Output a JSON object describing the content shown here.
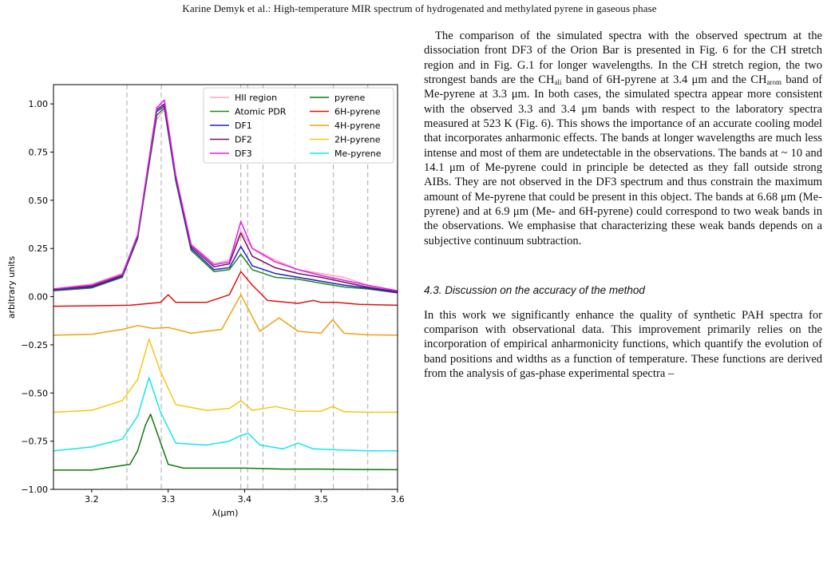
{
  "running_head": "Karine Demyk et al.: High-temperature MIR spectrum of hydrogenated and methylated pyrene in gaseous phase",
  "paragraph1": {
    "t1": "The comparison of the simulated spectra with the observed spectrum at the dissociation front DF3 of the Orion Bar is presented in Fig. 6 for the CH stretch region and in Fig. G.1 for longer wavelengths. In the CH stretch region, the two strongest bands are the CH",
    "sub1": "ali",
    "t2": " band of 6H-pyrene at 3.4 μm and the CH",
    "sub2": "arom",
    "t3": " band of Me-pyrene at 3.3 μm. In both cases, the simulated spectra appear more consistent with the observed 3.3 and 3.4 μm bands with respect to the laboratory spectra measured at 523 K (Fig. 6). This shows the importance of an accurate cooling model that incorporates anharmonic effects. The bands at longer wavelengths are much less intense and most of them are undetectable in the observations. The bands at ~ 10 and 14.1 μm of Me-pyrene could in principle be detected as they fall outside strong AIBs. They are not observed in the DF3 spectrum and thus constrain the maximum amount of Me-pyrene that could be present in this object. The bands at 6.68 μm (Me-pyrene) and at 6.9 μm (Me- and 6H-pyrene) could correspond to two weak bands in the observations. We emphasise that characterizing these weak bands depends on a subjective continuum subtraction."
  },
  "section_heading": "4.3. Discussion on the accuracy of the method",
  "paragraph2": "In this work we significantly enhance the quality of synthetic PAH spectra for comparison with observational data. This improvement primarily relies on the incorporation of empirical anharmonicity functions, which quantify the evolution of band positions and widths as a function of temperature. These functions are derived from the analysis of gas-phase experimental spectra –",
  "chart_data": {
    "type": "line",
    "xlabel": "λ(μm)",
    "ylabel": "arbitrary units",
    "xlim": [
      3.15,
      3.6
    ],
    "ylim": [
      -1.0,
      1.1
    ],
    "xticks": [
      3.2,
      3.3,
      3.4,
      3.5,
      3.6
    ],
    "yticks": [
      1.0,
      0.75,
      0.5,
      0.25,
      0.0,
      -0.25,
      -0.5,
      -0.75,
      -1.0
    ],
    "vlines": [
      3.246,
      3.291,
      3.395,
      3.404,
      3.424,
      3.466,
      3.516,
      3.561
    ],
    "legend_position": "top-right",
    "series": [
      {
        "name": "HII region",
        "color": "#f4a7b9",
        "x": [
          3.15,
          3.2,
          3.24,
          3.26,
          3.285,
          3.295,
          3.31,
          3.33,
          3.36,
          3.38,
          3.395,
          3.41,
          3.44,
          3.47,
          3.5,
          3.53,
          3.56,
          3.6
        ],
        "y": [
          0.04,
          0.065,
          0.12,
          0.32,
          0.92,
          0.97,
          0.62,
          0.27,
          0.17,
          0.19,
          0.34,
          0.25,
          0.19,
          0.14,
          0.12,
          0.1,
          0.06,
          0.03
        ]
      },
      {
        "name": "Atomic PDR",
        "color": "#1a8a1a",
        "x": [
          3.15,
          3.2,
          3.24,
          3.26,
          3.285,
          3.295,
          3.31,
          3.33,
          3.36,
          3.38,
          3.395,
          3.41,
          3.44,
          3.47,
          3.5,
          3.53,
          3.56,
          3.6
        ],
        "y": [
          0.03,
          0.045,
          0.1,
          0.3,
          0.94,
          0.98,
          0.6,
          0.24,
          0.13,
          0.14,
          0.22,
          0.14,
          0.1,
          0.09,
          0.07,
          0.05,
          0.04,
          0.02
        ]
      },
      {
        "name": "DF1",
        "color": "#1f1fd6",
        "x": [
          3.15,
          3.2,
          3.24,
          3.26,
          3.285,
          3.295,
          3.31,
          3.33,
          3.36,
          3.38,
          3.395,
          3.41,
          3.44,
          3.47,
          3.5,
          3.53,
          3.56,
          3.6
        ],
        "y": [
          0.035,
          0.05,
          0.105,
          0.31,
          0.96,
          0.99,
          0.61,
          0.25,
          0.14,
          0.15,
          0.26,
          0.16,
          0.12,
          0.1,
          0.08,
          0.06,
          0.045,
          0.02
        ]
      },
      {
        "name": "DF2",
        "color": "#7b1060",
        "x": [
          3.15,
          3.2,
          3.24,
          3.26,
          3.285,
          3.295,
          3.31,
          3.33,
          3.36,
          3.38,
          3.395,
          3.41,
          3.44,
          3.47,
          3.5,
          3.53,
          3.56,
          3.6
        ],
        "y": [
          0.038,
          0.055,
          0.11,
          0.315,
          0.97,
          1.0,
          0.62,
          0.26,
          0.155,
          0.17,
          0.33,
          0.21,
          0.15,
          0.12,
          0.1,
          0.075,
          0.05,
          0.025
        ]
      },
      {
        "name": "DF3",
        "color": "#e81ce8",
        "x": [
          3.15,
          3.2,
          3.24,
          3.26,
          3.285,
          3.295,
          3.31,
          3.33,
          3.36,
          3.38,
          3.395,
          3.41,
          3.44,
          3.47,
          3.5,
          3.53,
          3.56,
          3.6
        ],
        "y": [
          0.04,
          0.06,
          0.115,
          0.32,
          0.98,
          1.02,
          0.63,
          0.27,
          0.165,
          0.18,
          0.39,
          0.25,
          0.18,
          0.14,
          0.11,
          0.085,
          0.06,
          0.03
        ]
      },
      {
        "name": "pyrene",
        "color": "#0d7a0d",
        "x": [
          3.15,
          3.2,
          3.25,
          3.26,
          3.27,
          3.277,
          3.285,
          3.3,
          3.32,
          3.35,
          3.4,
          3.45,
          3.5,
          3.55,
          3.6
        ],
        "y": [
          -0.9,
          -0.9,
          -0.87,
          -0.8,
          -0.67,
          -0.61,
          -0.7,
          -0.87,
          -0.89,
          -0.89,
          -0.89,
          -0.895,
          -0.895,
          -0.897,
          -0.898
        ]
      },
      {
        "name": "6H-pyrene",
        "color": "#e01010",
        "x": [
          3.15,
          3.25,
          3.29,
          3.3,
          3.31,
          3.35,
          3.38,
          3.395,
          3.41,
          3.43,
          3.47,
          3.49,
          3.5,
          3.52,
          3.55,
          3.6
        ],
        "y": [
          -0.05,
          -0.045,
          -0.03,
          0.01,
          -0.03,
          -0.03,
          0.01,
          0.13,
          0.06,
          -0.02,
          -0.035,
          -0.02,
          -0.03,
          -0.03,
          -0.04,
          -0.045
        ]
      },
      {
        "name": "4H-pyrene",
        "color": "#f0a010",
        "x": [
          3.15,
          3.2,
          3.24,
          3.26,
          3.28,
          3.3,
          3.33,
          3.37,
          3.395,
          3.42,
          3.445,
          3.47,
          3.5,
          3.515,
          3.53,
          3.56,
          3.6
        ],
        "y": [
          -0.2,
          -0.195,
          -0.17,
          -0.15,
          -0.165,
          -0.16,
          -0.19,
          -0.17,
          0.01,
          -0.18,
          -0.11,
          -0.18,
          -0.19,
          -0.12,
          -0.19,
          -0.198,
          -0.2
        ]
      },
      {
        "name": "2H-pyrene",
        "color": "#f5c810",
        "x": [
          3.15,
          3.2,
          3.24,
          3.26,
          3.275,
          3.29,
          3.31,
          3.35,
          3.38,
          3.395,
          3.41,
          3.44,
          3.47,
          3.5,
          3.515,
          3.53,
          3.56,
          3.6
        ],
        "y": [
          -0.6,
          -0.59,
          -0.54,
          -0.43,
          -0.22,
          -0.39,
          -0.56,
          -0.59,
          -0.58,
          -0.54,
          -0.59,
          -0.57,
          -0.595,
          -0.595,
          -0.57,
          -0.597,
          -0.6,
          -0.6
        ]
      },
      {
        "name": "Me-pyrene",
        "color": "#10e8f0",
        "x": [
          3.15,
          3.2,
          3.24,
          3.26,
          3.275,
          3.29,
          3.31,
          3.35,
          3.38,
          3.395,
          3.405,
          3.42,
          3.45,
          3.47,
          3.49,
          3.52,
          3.56,
          3.6
        ],
        "y": [
          -0.8,
          -0.78,
          -0.74,
          -0.62,
          -0.42,
          -0.6,
          -0.76,
          -0.77,
          -0.75,
          -0.72,
          -0.71,
          -0.77,
          -0.79,
          -0.76,
          -0.79,
          -0.795,
          -0.8,
          -0.8
        ]
      }
    ]
  }
}
